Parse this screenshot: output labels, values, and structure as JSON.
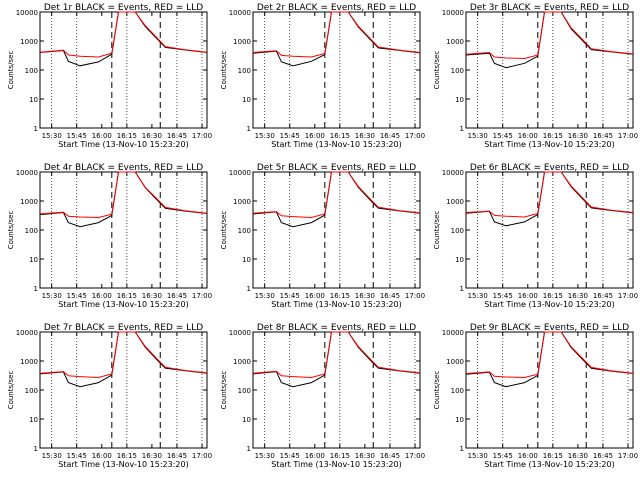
{
  "figure": {
    "xlabel": "Start Time (13-Nov-10 15:23:20)",
    "ylabel": "Counts/sec",
    "y_ticks": [
      1,
      10,
      100,
      1000,
      10000
    ],
    "y_tick_labels": [
      "1",
      "10",
      "100",
      "1000",
      "10000"
    ],
    "x_ticks": [
      "15:30",
      "15:45",
      "16:00",
      "16:15",
      "16:30",
      "16:45",
      "17:00"
    ],
    "colors": {
      "events": "#000000",
      "lld": "#ff0000",
      "axes": "#000000"
    }
  },
  "chart_data": [
    {
      "type": "line",
      "title": "Det 1r BLACK = Events, RED = LLD",
      "x": [
        "15:23",
        "15:37",
        "15:40",
        "15:47",
        "15:58",
        "16:06",
        "16:10",
        "16:20",
        "16:26",
        "16:33",
        "16:38",
        "16:50",
        "17:03"
      ],
      "series": [
        {
          "name": "Events",
          "values": [
            400,
            470,
            200,
            140,
            190,
            350,
            10000,
            10000,
            3200,
            1200,
            600,
            490,
            400
          ]
        },
        {
          "name": "LLD",
          "values": [
            410,
            480,
            330,
            300,
            280,
            380,
            10000,
            10000,
            3400,
            1300,
            640,
            500,
            410
          ]
        }
      ],
      "xlim": [
        "15:23",
        "17:03"
      ],
      "ylim": [
        1,
        10000
      ],
      "yscale": "log"
    },
    {
      "type": "line",
      "title": "Det 2r BLACK = Events, RED = LLD",
      "x": [
        "15:23",
        "15:37",
        "15:40",
        "15:47",
        "15:58",
        "16:06",
        "16:10",
        "16:20",
        "16:26",
        "16:33",
        "16:38",
        "16:50",
        "17:03"
      ],
      "series": [
        {
          "name": "Events",
          "values": [
            380,
            450,
            190,
            140,
            200,
            340,
            10000,
            10000,
            3100,
            1150,
            580,
            480,
            390
          ]
        },
        {
          "name": "LLD",
          "values": [
            400,
            460,
            320,
            300,
            280,
            370,
            10000,
            10000,
            3300,
            1250,
            620,
            490,
            400
          ]
        }
      ],
      "xlim": [
        "15:23",
        "17:03"
      ],
      "ylim": [
        1,
        10000
      ],
      "yscale": "log"
    },
    {
      "type": "line",
      "title": "Det 3r BLACK = Events, RED = LLD",
      "x": [
        "15:23",
        "15:37",
        "15:40",
        "15:47",
        "15:58",
        "16:06",
        "16:10",
        "16:20",
        "16:26",
        "16:33",
        "16:38",
        "16:50",
        "17:03"
      ],
      "series": [
        {
          "name": "Events",
          "values": [
            330,
            380,
            170,
            120,
            170,
            300,
            10000,
            10000,
            2600,
            1000,
            500,
            420,
            350
          ]
        },
        {
          "name": "LLD",
          "values": [
            350,
            400,
            280,
            260,
            250,
            330,
            10000,
            10000,
            2800,
            1100,
            540,
            430,
            360
          ]
        }
      ],
      "xlim": [
        "15:23",
        "17:03"
      ],
      "ylim": [
        1,
        10000
      ],
      "yscale": "log"
    },
    {
      "type": "line",
      "title": "Det 4r BLACK = Events, RED = LLD",
      "x": [
        "15:23",
        "15:37",
        "15:40",
        "15:47",
        "15:58",
        "16:06",
        "16:10",
        "16:20",
        "16:26",
        "16:33",
        "16:38",
        "16:50",
        "17:03"
      ],
      "series": [
        {
          "name": "Events",
          "values": [
            340,
            400,
            180,
            130,
            180,
            320,
            10000,
            10000,
            2900,
            1100,
            560,
            450,
            370
          ]
        },
        {
          "name": "LLD",
          "values": [
            360,
            410,
            300,
            280,
            270,
            350,
            10000,
            10000,
            3000,
            1200,
            600,
            460,
            380
          ]
        }
      ],
      "xlim": [
        "15:23",
        "17:03"
      ],
      "ylim": [
        1,
        10000
      ],
      "yscale": "log"
    },
    {
      "type": "line",
      "title": "Det 5r BLACK = Events, RED = LLD",
      "x": [
        "15:23",
        "15:37",
        "15:40",
        "15:47",
        "15:58",
        "16:06",
        "16:10",
        "16:20",
        "16:26",
        "16:33",
        "16:38",
        "16:50",
        "17:03"
      ],
      "series": [
        {
          "name": "Events",
          "values": [
            360,
            420,
            180,
            130,
            180,
            330,
            10000,
            10000,
            3000,
            1100,
            570,
            460,
            380
          ]
        },
        {
          "name": "LLD",
          "values": [
            380,
            430,
            310,
            290,
            270,
            360,
            10000,
            10000,
            3200,
            1200,
            610,
            470,
            390
          ]
        }
      ],
      "xlim": [
        "15:23",
        "17:03"
      ],
      "ylim": [
        1,
        10000
      ],
      "yscale": "log"
    },
    {
      "type": "line",
      "title": "Det 6r BLACK = Events, RED = LLD",
      "x": [
        "15:23",
        "15:37",
        "15:40",
        "15:47",
        "15:58",
        "16:06",
        "16:10",
        "16:20",
        "16:26",
        "16:33",
        "16:38",
        "16:50",
        "17:03"
      ],
      "series": [
        {
          "name": "Events",
          "values": [
            380,
            440,
            190,
            140,
            190,
            340,
            10000,
            10000,
            3100,
            1150,
            580,
            470,
            390
          ]
        },
        {
          "name": "LLD",
          "values": [
            400,
            450,
            320,
            300,
            280,
            370,
            10000,
            10000,
            3300,
            1250,
            620,
            480,
            400
          ]
        }
      ],
      "xlim": [
        "15:23",
        "17:03"
      ],
      "ylim": [
        1,
        10000
      ],
      "yscale": "log"
    },
    {
      "type": "line",
      "title": "Det 7r BLACK = Events, RED = LLD",
      "x": [
        "15:23",
        "15:37",
        "15:40",
        "15:47",
        "15:58",
        "16:06",
        "16:10",
        "16:20",
        "16:26",
        "16:33",
        "16:38",
        "16:50",
        "17:03"
      ],
      "series": [
        {
          "name": "Events",
          "values": [
            360,
            420,
            180,
            130,
            180,
            330,
            10000,
            10000,
            3000,
            1100,
            570,
            460,
            380
          ]
        },
        {
          "name": "LLD",
          "values": [
            380,
            430,
            310,
            290,
            270,
            360,
            10000,
            10000,
            3200,
            1200,
            610,
            470,
            390
          ]
        }
      ],
      "xlim": [
        "15:23",
        "17:03"
      ],
      "ylim": [
        1,
        10000
      ],
      "yscale": "log"
    },
    {
      "type": "line",
      "title": "Det 8r BLACK = Events, RED = LLD",
      "x": [
        "15:23",
        "15:37",
        "15:40",
        "15:47",
        "15:58",
        "16:06",
        "16:10",
        "16:20",
        "16:26",
        "16:33",
        "16:38",
        "16:50",
        "17:03"
      ],
      "series": [
        {
          "name": "Events",
          "values": [
            360,
            430,
            180,
            130,
            180,
            330,
            10000,
            10000,
            3000,
            1100,
            570,
            460,
            380
          ]
        },
        {
          "name": "LLD",
          "values": [
            380,
            440,
            310,
            290,
            270,
            360,
            10000,
            10000,
            3200,
            1200,
            610,
            470,
            390
          ]
        }
      ],
      "xlim": [
        "15:23",
        "17:03"
      ],
      "ylim": [
        1,
        10000
      ],
      "yscale": "log"
    },
    {
      "type": "line",
      "title": "Det 9r BLACK = Events, RED = LLD",
      "x": [
        "15:23",
        "15:37",
        "15:40",
        "15:47",
        "15:58",
        "16:06",
        "16:10",
        "16:20",
        "16:26",
        "16:33",
        "16:38",
        "16:50",
        "17:03"
      ],
      "series": [
        {
          "name": "Events",
          "values": [
            350,
            410,
            180,
            130,
            180,
            320,
            10000,
            10000,
            2900,
            1100,
            560,
            450,
            370
          ]
        },
        {
          "name": "LLD",
          "values": [
            370,
            420,
            300,
            280,
            270,
            350,
            10000,
            10000,
            3100,
            1200,
            600,
            460,
            380
          ]
        }
      ],
      "xlim": [
        "15:23",
        "17:03"
      ],
      "ylim": [
        1,
        10000
      ],
      "yscale": "log"
    }
  ]
}
